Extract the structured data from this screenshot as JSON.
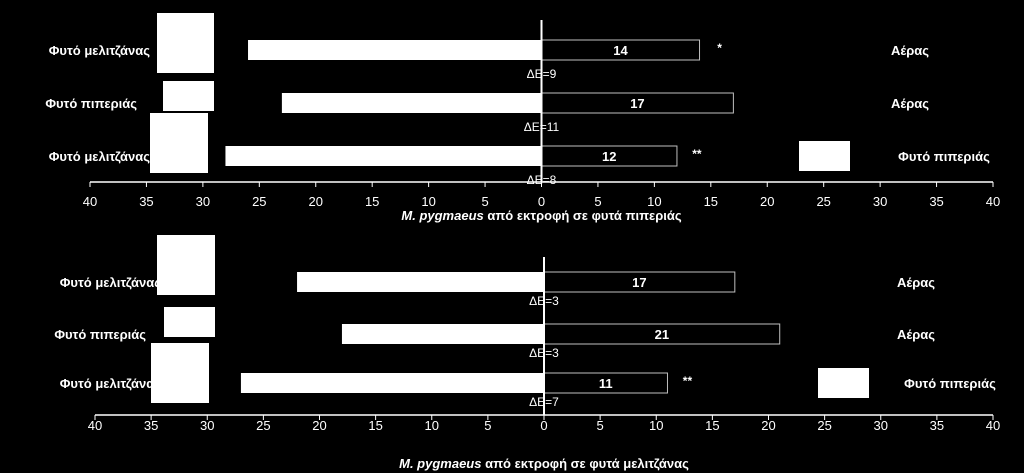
{
  "chart_data": [
    {
      "type": "bar",
      "orientation": "horizontal-diverging",
      "xlabel_italic": "M. pygmaeus",
      "xlabel_rest": " από εκτροφή σε φυτά πιπεριάς",
      "xlim": [
        -40,
        40
      ],
      "tick_labels": [
        "40",
        "35",
        "30",
        "25",
        "20",
        "15",
        "10",
        "5",
        "0",
        "5",
        "10",
        "15",
        "20",
        "25",
        "30",
        "35",
        "40"
      ],
      "rows": [
        {
          "left_label": "Φυτό μελιτζάνας",
          "left_value": 26,
          "right_value": 14,
          "right_label_text": "14",
          "right_label": "Αέρας",
          "significance": "*",
          "delta": "ΔΕ=9"
        },
        {
          "left_label": "Φυτό πιπεριάς",
          "left_value": 23,
          "right_value": 17,
          "right_label_text": "17",
          "right_label": "Αέρας",
          "significance": "",
          "delta": "ΔΕ=11"
        },
        {
          "left_label": "Φυτό μελιτζάνας",
          "left_value": 28,
          "right_value": 12,
          "right_label_text": "12",
          "right_label": "Φυτό πιπεριάς",
          "significance": "**",
          "delta": "ΔΕ=8"
        }
      ]
    },
    {
      "type": "bar",
      "orientation": "horizontal-diverging",
      "xlabel_italic": "M. pygmaeus",
      "xlabel_rest": " από εκτροφή σε φυτά μελιτζάνας",
      "xlim": [
        -40,
        40
      ],
      "tick_labels": [
        "40",
        "35",
        "30",
        "25",
        "20",
        "15",
        "10",
        "5",
        "0",
        "5",
        "10",
        "15",
        "20",
        "25",
        "30",
        "35",
        "40"
      ],
      "rows": [
        {
          "left_label": "Φυτό μελιτζάνας",
          "left_value": 22,
          "right_value": 17,
          "right_label_text": "17",
          "right_label": "Αέρας",
          "significance": "",
          "delta": "ΔΕ=3"
        },
        {
          "left_label": "Φυτό πιπεριάς",
          "left_value": 18,
          "right_value": 21,
          "right_label_text": "21",
          "right_label": "Αέρας",
          "significance": "",
          "delta": "ΔΕ=3"
        },
        {
          "left_label": "Φυτό μελιτζάνας",
          "left_value": 27,
          "right_value": 11,
          "right_label_text": "11",
          "right_label": "Φυτό πιπεριάς",
          "significance": "**",
          "delta": "ΔΕ=7"
        }
      ]
    }
  ],
  "colors": {
    "background": "#000000",
    "left_bar": "#ffffff",
    "right_bar_fill": "#000000",
    "right_bar_stroke": "#bfbfbf",
    "text": "#ffffff",
    "icon_box": "#ffffff"
  }
}
